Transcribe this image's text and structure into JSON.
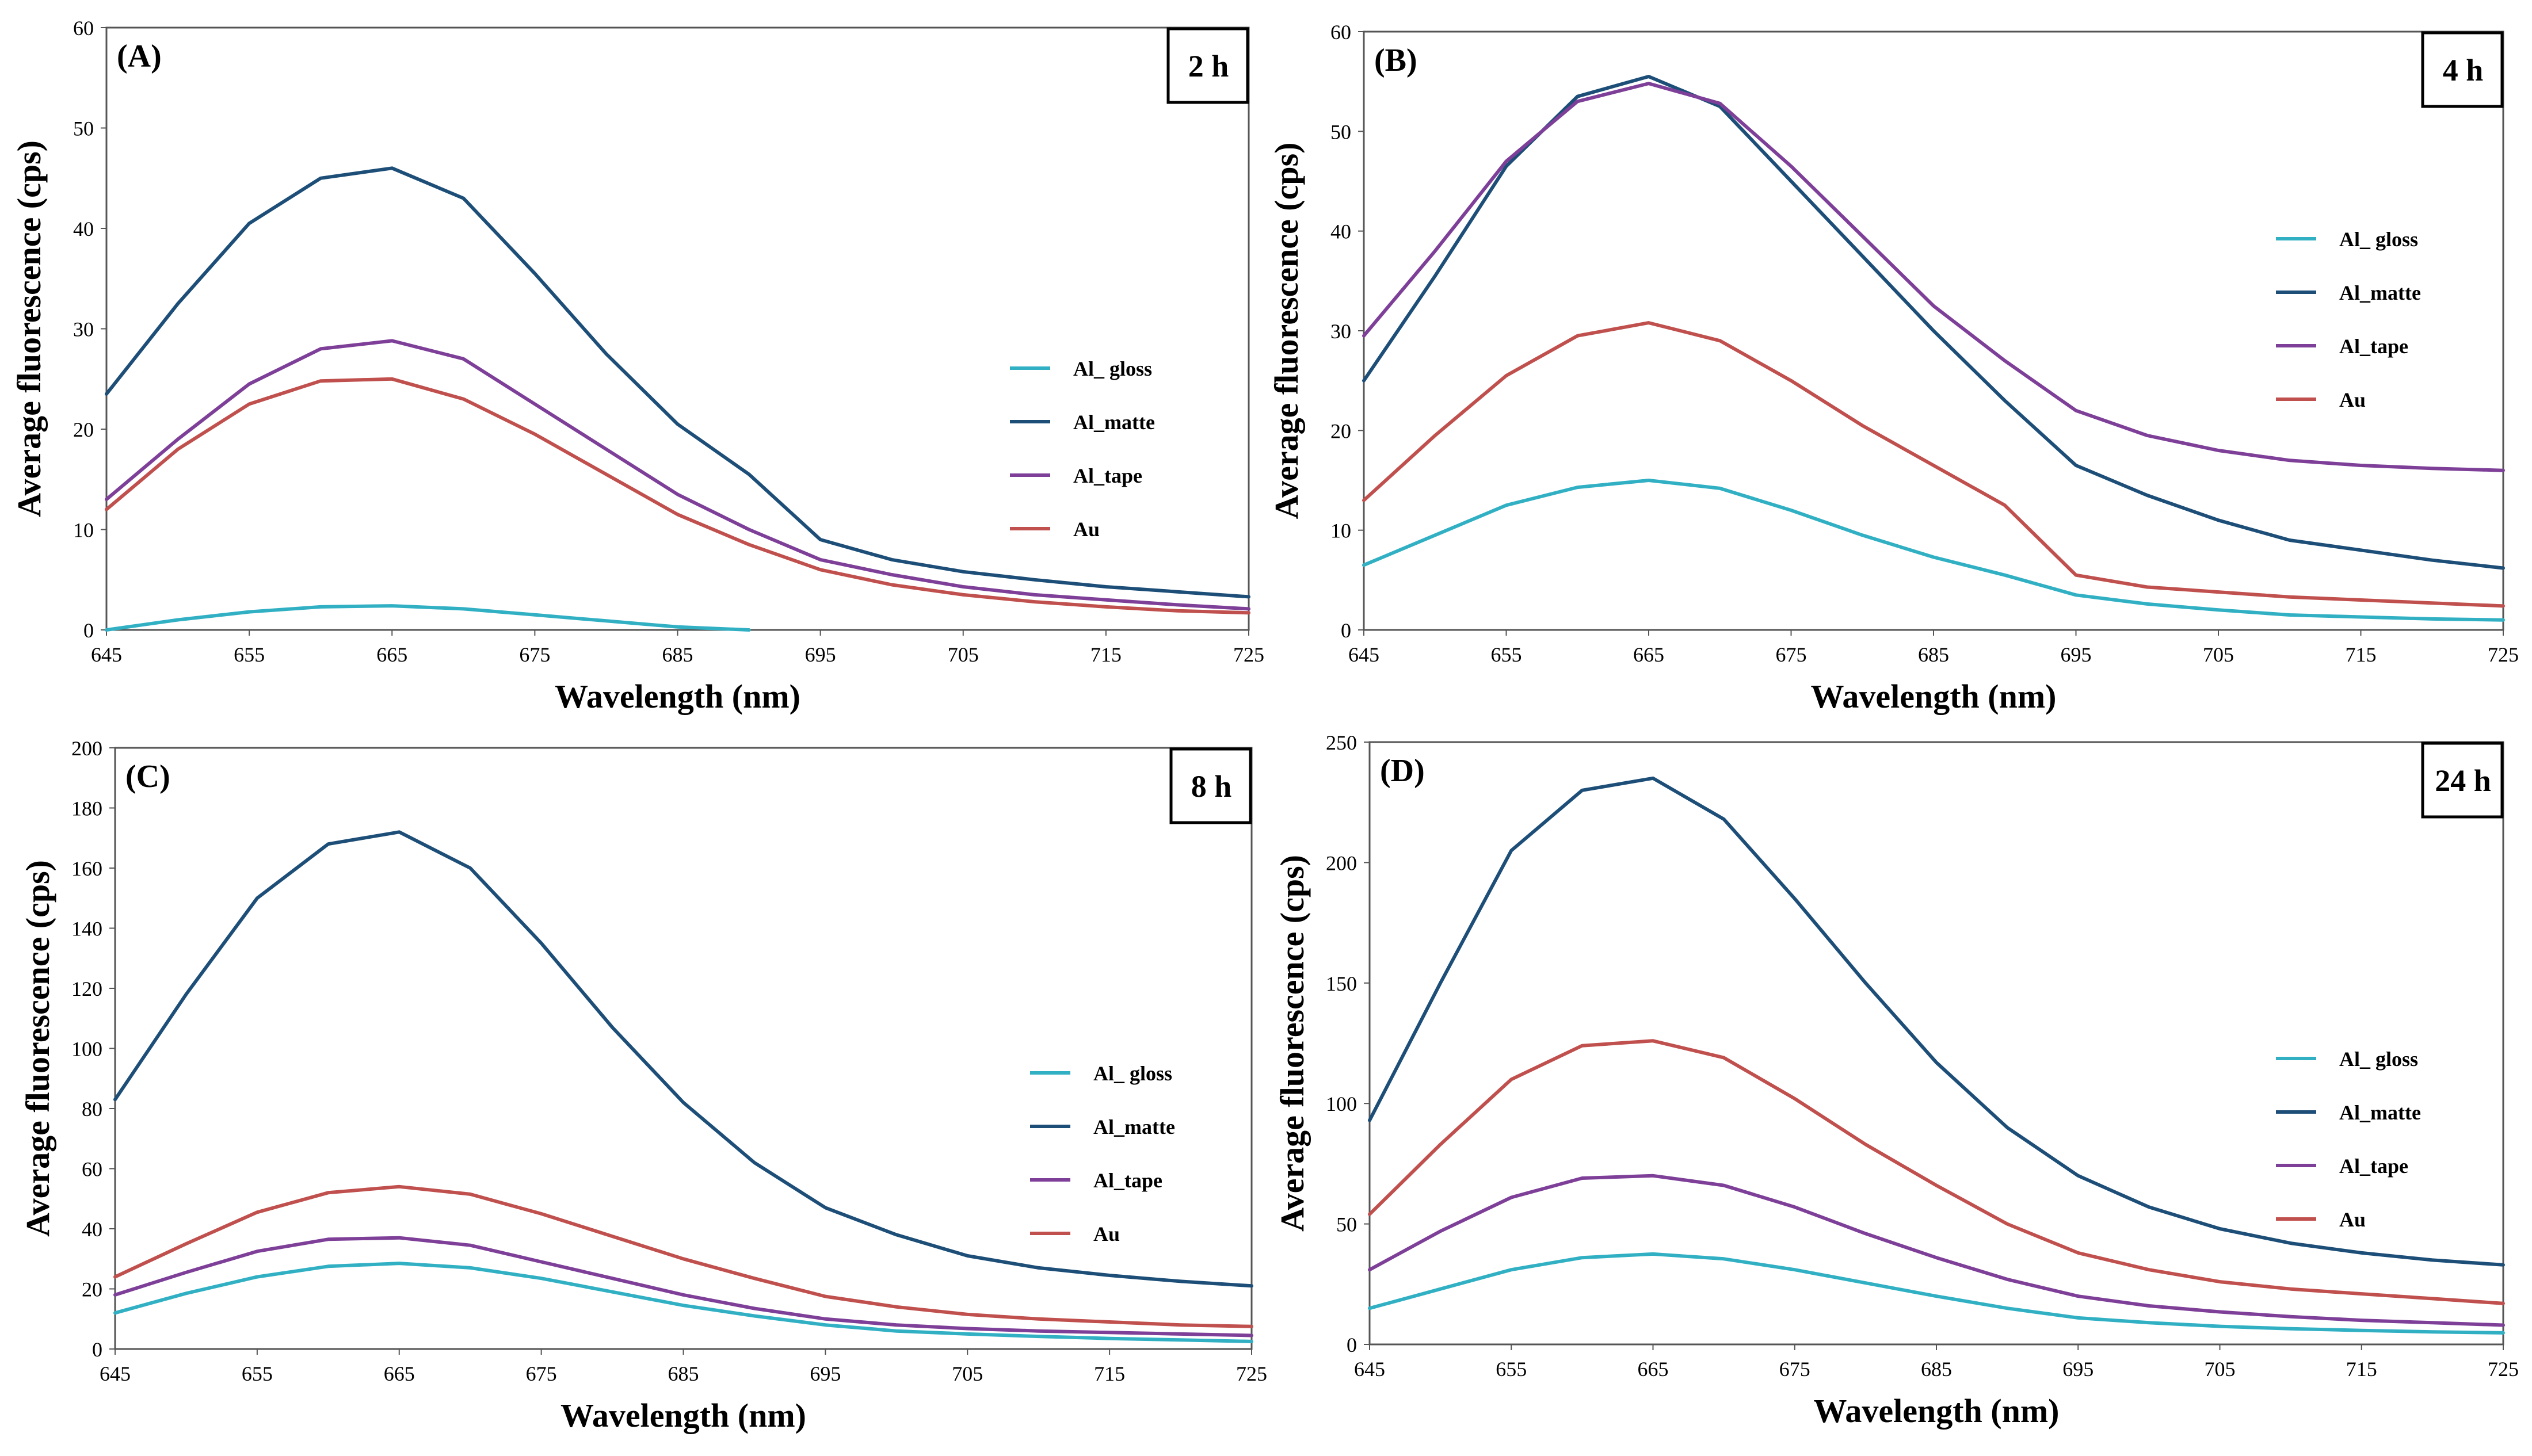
{
  "chart_data": [
    {
      "type": "line",
      "panel": "(A)",
      "time_label": "2 h",
      "xlabel": "Wavelength (nm)",
      "ylabel": "Average  fluorescence (cps)",
      "xlim": [
        645,
        725
      ],
      "ylim": [
        0,
        60
      ],
      "xticks": [
        645,
        655,
        665,
        675,
        685,
        695,
        705,
        715,
        725
      ],
      "yticks": [
        0,
        10,
        20,
        30,
        40,
        50,
        60
      ],
      "legend_position": "center-right",
      "series": [
        {
          "name": "Al_ gloss",
          "color": "#31b0c4",
          "x": [
            645,
            650,
            655,
            660,
            665,
            670,
            675,
            680,
            685,
            690
          ],
          "y": [
            0,
            1.0,
            1.8,
            2.3,
            2.4,
            2.1,
            1.5,
            0.9,
            0.3,
            0
          ]
        },
        {
          "name": "Al_matte",
          "color": "#1d4e78",
          "x": [
            645,
            650,
            655,
            660,
            665,
            670,
            675,
            680,
            685,
            690,
            695,
            700,
            705,
            710,
            715,
            720,
            725
          ],
          "y": [
            23.5,
            32.5,
            40.5,
            45.0,
            46.0,
            43.0,
            35.5,
            27.5,
            20.5,
            15.5,
            9.0,
            7.0,
            5.8,
            5.0,
            4.3,
            3.8,
            3.3
          ]
        },
        {
          "name": "Al_tape",
          "color": "#7e3f98",
          "x": [
            645,
            650,
            655,
            660,
            665,
            670,
            675,
            680,
            685,
            690,
            695,
            700,
            705,
            710,
            715,
            720,
            725
          ],
          "y": [
            13.0,
            19.0,
            24.5,
            28.0,
            28.8,
            27.0,
            22.5,
            18.0,
            13.5,
            10.0,
            7.0,
            5.5,
            4.3,
            3.5,
            3.0,
            2.5,
            2.1
          ]
        },
        {
          "name": "Au",
          "color": "#c0504d",
          "x": [
            645,
            650,
            655,
            660,
            665,
            670,
            675,
            680,
            685,
            690,
            695,
            700,
            705,
            710,
            715,
            720,
            725
          ],
          "y": [
            12.0,
            18.0,
            22.5,
            24.8,
            25.0,
            23.0,
            19.5,
            15.5,
            11.5,
            8.5,
            6.0,
            4.5,
            3.5,
            2.8,
            2.3,
            1.9,
            1.7
          ]
        }
      ]
    },
    {
      "type": "line",
      "panel": "(B)",
      "time_label": "4 h",
      "xlabel": "Wavelength (nm)",
      "ylabel": "Average  fluorescence (cps)",
      "xlim": [
        645,
        725
      ],
      "ylim": [
        0,
        60
      ],
      "xticks": [
        645,
        655,
        665,
        675,
        685,
        695,
        705,
        715,
        725
      ],
      "yticks": [
        0,
        10,
        20,
        30,
        40,
        50,
        60
      ],
      "legend_position": "right",
      "series": [
        {
          "name": "Al_ gloss",
          "color": "#31b0c4",
          "x": [
            645,
            650,
            655,
            660,
            665,
            670,
            675,
            680,
            685,
            690,
            695,
            700,
            705,
            710,
            715,
            720,
            725
          ],
          "y": [
            6.5,
            9.5,
            12.5,
            14.3,
            15.0,
            14.2,
            12.0,
            9.5,
            7.3,
            5.5,
            3.5,
            2.6,
            2.0,
            1.5,
            1.3,
            1.1,
            1.0
          ]
        },
        {
          "name": "Al_matte",
          "color": "#1d4e78",
          "x": [
            645,
            650,
            655,
            660,
            665,
            670,
            675,
            680,
            685,
            690,
            695,
            700,
            705,
            710,
            715,
            720,
            725
          ],
          "y": [
            25.0,
            35.5,
            46.5,
            53.5,
            55.5,
            52.5,
            45.0,
            37.5,
            30.0,
            23.0,
            16.5,
            13.5,
            11.0,
            9.0,
            8.0,
            7.0,
            6.2
          ]
        },
        {
          "name": "Al_tape",
          "color": "#7e3f98",
          "x": [
            645,
            650,
            655,
            660,
            665,
            670,
            675,
            680,
            685,
            690,
            695,
            700,
            705,
            710,
            715,
            720,
            725
          ],
          "y": [
            29.5,
            38.0,
            47.0,
            53.0,
            54.8,
            52.8,
            46.5,
            39.5,
            32.5,
            27.0,
            22.0,
            19.5,
            18.0,
            17.0,
            16.5,
            16.2,
            16.0
          ]
        },
        {
          "name": "Au",
          "color": "#c0504d",
          "x": [
            645,
            650,
            655,
            660,
            665,
            670,
            675,
            680,
            685,
            690,
            695,
            700,
            705,
            710,
            715,
            720,
            725
          ],
          "y": [
            13.0,
            19.5,
            25.5,
            29.5,
            30.8,
            29.0,
            25.0,
            20.5,
            16.5,
            12.5,
            5.5,
            4.3,
            3.8,
            3.3,
            3.0,
            2.7,
            2.4
          ]
        }
      ]
    },
    {
      "type": "line",
      "panel": "(C)",
      "time_label": "8 h",
      "xlabel": "Wavelength (nm)",
      "ylabel": "Average  fluorescence (cps)",
      "xlim": [
        645,
        725
      ],
      "ylim": [
        0,
        200
      ],
      "xticks": [
        645,
        655,
        665,
        675,
        685,
        695,
        705,
        715,
        725
      ],
      "yticks": [
        0,
        20,
        40,
        60,
        80,
        100,
        120,
        140,
        160,
        180,
        200
      ],
      "legend_position": "center-right",
      "series": [
        {
          "name": "Al_ gloss",
          "color": "#31b0c4",
          "x": [
            645,
            650,
            655,
            660,
            665,
            670,
            675,
            680,
            685,
            690,
            695,
            700,
            705,
            710,
            715,
            720,
            725
          ],
          "y": [
            12.0,
            18.5,
            24.0,
            27.5,
            28.5,
            27.0,
            23.5,
            19.0,
            14.5,
            11.0,
            8.0,
            6.0,
            5.0,
            4.2,
            3.5,
            3.0,
            2.5
          ]
        },
        {
          "name": "Al_matte",
          "color": "#1d4e78",
          "x": [
            645,
            650,
            655,
            660,
            665,
            670,
            675,
            680,
            685,
            690,
            695,
            700,
            705,
            710,
            715,
            720,
            725
          ],
          "y": [
            83.0,
            118.0,
            150.0,
            168.0,
            172.0,
            160.0,
            135.0,
            107.0,
            82.0,
            62.0,
            47.0,
            38.0,
            31.0,
            27.0,
            24.5,
            22.5,
            21.0
          ]
        },
        {
          "name": "Al_tape",
          "color": "#7e3f98",
          "x": [
            645,
            650,
            655,
            660,
            665,
            670,
            675,
            680,
            685,
            690,
            695,
            700,
            705,
            710,
            715,
            720,
            725
          ],
          "y": [
            18.0,
            25.5,
            32.5,
            36.5,
            37.0,
            34.5,
            29.0,
            23.5,
            18.0,
            13.5,
            10.0,
            8.0,
            6.8,
            6.0,
            5.5,
            5.0,
            4.5
          ]
        },
        {
          "name": "Au",
          "color": "#c0504d",
          "x": [
            645,
            650,
            655,
            660,
            665,
            670,
            675,
            680,
            685,
            690,
            695,
            700,
            705,
            710,
            715,
            720,
            725
          ],
          "y": [
            24.0,
            35.0,
            45.5,
            52.0,
            54.0,
            51.5,
            45.0,
            37.5,
            30.0,
            23.5,
            17.5,
            14.0,
            11.5,
            10.0,
            9.0,
            8.0,
            7.5
          ]
        }
      ]
    },
    {
      "type": "line",
      "panel": "(D)",
      "time_label": "24 h",
      "xlabel": "Wavelength (nm)",
      "ylabel": "Average  fluorescence (cps)",
      "xlim": [
        645,
        725
      ],
      "ylim": [
        0,
        250
      ],
      "xticks": [
        645,
        655,
        665,
        675,
        685,
        695,
        705,
        715,
        725
      ],
      "yticks": [
        0,
        50,
        100,
        150,
        200,
        250
      ],
      "legend_position": "center-right",
      "series": [
        {
          "name": "Al_ gloss",
          "color": "#31b0c4",
          "x": [
            645,
            650,
            655,
            660,
            665,
            670,
            675,
            680,
            685,
            690,
            695,
            700,
            705,
            710,
            715,
            720,
            725
          ],
          "y": [
            15.0,
            23.0,
            31.0,
            36.0,
            37.5,
            35.5,
            31.0,
            25.5,
            20.0,
            15.0,
            11.0,
            9.0,
            7.5,
            6.5,
            5.8,
            5.2,
            4.8
          ]
        },
        {
          "name": "Al_matte",
          "color": "#1d4e78",
          "x": [
            645,
            650,
            655,
            660,
            665,
            670,
            675,
            680,
            685,
            690,
            695,
            700,
            705,
            710,
            715,
            720,
            725
          ],
          "y": [
            93.0,
            150.0,
            205.0,
            230.0,
            235.0,
            218.0,
            185.0,
            150.0,
            117.0,
            90.0,
            70.0,
            57.0,
            48.0,
            42.0,
            38.0,
            35.0,
            33.0
          ]
        },
        {
          "name": "Al_tape",
          "color": "#7e3f98",
          "x": [
            645,
            650,
            655,
            660,
            665,
            670,
            675,
            680,
            685,
            690,
            695,
            700,
            705,
            710,
            715,
            720,
            725
          ],
          "y": [
            31.0,
            47.0,
            61.0,
            69.0,
            70.0,
            66.0,
            57.0,
            46.0,
            36.0,
            27.0,
            20.0,
            16.0,
            13.5,
            11.5,
            10.0,
            9.0,
            8.0
          ]
        },
        {
          "name": "Au",
          "color": "#c0504d",
          "x": [
            645,
            650,
            655,
            660,
            665,
            670,
            675,
            680,
            685,
            690,
            695,
            700,
            705,
            710,
            715,
            720,
            725
          ],
          "y": [
            54.0,
            83.0,
            110.0,
            124.0,
            126.0,
            119.0,
            102.0,
            83.0,
            66.0,
            50.0,
            38.0,
            31.0,
            26.0,
            23.0,
            21.0,
            19.0,
            17.0
          ]
        }
      ]
    }
  ]
}
